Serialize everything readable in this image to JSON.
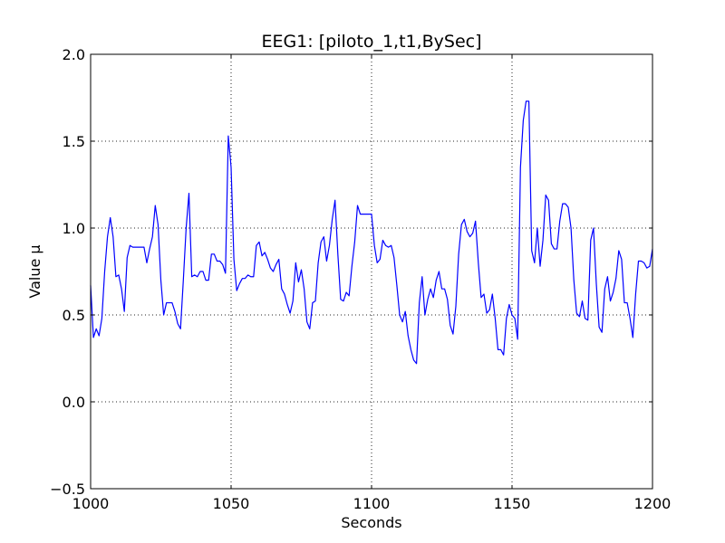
{
  "chart_data": {
    "type": "line",
    "title": "EEG1: [piloto_1,t1,BySec]",
    "xlabel": "Seconds",
    "ylabel": "Value μ",
    "xlim": [
      1000,
      1200
    ],
    "ylim": [
      -0.5,
      2.0
    ],
    "xticks": [
      1000,
      1050,
      1100,
      1150,
      1200
    ],
    "yticks": [
      -0.5,
      0.0,
      0.5,
      1.0,
      1.5,
      2.0
    ],
    "xtick_labels": [
      "1000",
      "1050",
      "1100",
      "1150",
      "1200"
    ],
    "ytick_labels": [
      "−0.5",
      "0.0",
      "0.5",
      "1.0",
      "1.5",
      "2.0"
    ],
    "grid": true,
    "series": [
      {
        "color": "#0000ff",
        "x": [
          1000,
          1001,
          1002,
          1003,
          1004,
          1005,
          1006,
          1007,
          1008,
          1009,
          1010,
          1011,
          1012,
          1013,
          1014,
          1015,
          1016,
          1017,
          1018,
          1019,
          1020,
          1021,
          1022,
          1023,
          1024,
          1025,
          1026,
          1027,
          1028,
          1029,
          1030,
          1031,
          1032,
          1033,
          1034,
          1035,
          1036,
          1037,
          1038,
          1039,
          1040,
          1041,
          1042,
          1043,
          1044,
          1045,
          1046,
          1047,
          1048,
          1049,
          1050,
          1051,
          1052,
          1053,
          1054,
          1055,
          1056,
          1057,
          1058,
          1059,
          1060,
          1061,
          1062,
          1063,
          1064,
          1065,
          1066,
          1067,
          1068,
          1069,
          1070,
          1071,
          1072,
          1073,
          1074,
          1075,
          1076,
          1077,
          1078,
          1079,
          1080,
          1081,
          1082,
          1083,
          1084,
          1085,
          1086,
          1087,
          1088,
          1089,
          1090,
          1091,
          1092,
          1093,
          1094,
          1095,
          1096,
          1097,
          1098,
          1099,
          1100,
          1101,
          1102,
          1103,
          1104,
          1105,
          1106,
          1107,
          1108,
          1109,
          1110,
          1111,
          1112,
          1113,
          1114,
          1115,
          1116,
          1117,
          1118,
          1119,
          1120,
          1121,
          1122,
          1123,
          1124,
          1125,
          1126,
          1127,
          1128,
          1129,
          1130,
          1131,
          1132,
          1133,
          1134,
          1135,
          1136,
          1137,
          1138,
          1139,
          1140,
          1141,
          1142,
          1143,
          1144,
          1145,
          1146,
          1147,
          1148,
          1149,
          1150,
          1151,
          1152,
          1153,
          1154,
          1155,
          1156,
          1157,
          1158,
          1159,
          1160,
          1161,
          1162,
          1163,
          1164,
          1165,
          1166,
          1167,
          1168,
          1169,
          1170,
          1171,
          1172,
          1173,
          1174,
          1175,
          1176,
          1177,
          1178,
          1179,
          1180,
          1181,
          1182,
          1183,
          1184,
          1185,
          1186,
          1187,
          1188,
          1189,
          1190,
          1191,
          1192,
          1193,
          1194,
          1195,
          1196,
          1197,
          1198,
          1199,
          1200
        ],
        "y": [
          0.67,
          0.37,
          0.42,
          0.38,
          0.48,
          0.75,
          0.95,
          1.06,
          0.95,
          0.72,
          0.73,
          0.65,
          0.52,
          0.83,
          0.9,
          0.89,
          0.89,
          0.89,
          0.89,
          0.89,
          0.8,
          0.88,
          0.95,
          1.13,
          1.02,
          0.7,
          0.5,
          0.57,
          0.57,
          0.57,
          0.52,
          0.45,
          0.42,
          0.7,
          1.0,
          1.2,
          0.72,
          0.73,
          0.72,
          0.75,
          0.75,
          0.7,
          0.7,
          0.85,
          0.85,
          0.81,
          0.81,
          0.79,
          0.74,
          1.53,
          1.35,
          0.82,
          0.64,
          0.68,
          0.71,
          0.71,
          0.73,
          0.72,
          0.72,
          0.9,
          0.92,
          0.84,
          0.86,
          0.82,
          0.77,
          0.75,
          0.79,
          0.82,
          0.65,
          0.62,
          0.56,
          0.51,
          0.58,
          0.8,
          0.69,
          0.76,
          0.65,
          0.46,
          0.42,
          0.57,
          0.58,
          0.8,
          0.92,
          0.95,
          0.81,
          0.9,
          1.05,
          1.16,
          0.85,
          0.59,
          0.58,
          0.63,
          0.61,
          0.78,
          0.92,
          1.13,
          1.08,
          1.08,
          1.08,
          1.08,
          1.08,
          0.9,
          0.8,
          0.82,
          0.93,
          0.9,
          0.89,
          0.9,
          0.83,
          0.67,
          0.5,
          0.46,
          0.52,
          0.38,
          0.3,
          0.24,
          0.22,
          0.57,
          0.72,
          0.5,
          0.59,
          0.65,
          0.6,
          0.7,
          0.75,
          0.65,
          0.65,
          0.59,
          0.44,
          0.39,
          0.55,
          0.85,
          1.02,
          1.05,
          0.98,
          0.95,
          0.97,
          1.04,
          0.8,
          0.6,
          0.62,
          0.51,
          0.53,
          0.62,
          0.48,
          0.3,
          0.3,
          0.27,
          0.48,
          0.56,
          0.5,
          0.48,
          0.36,
          1.35,
          1.62,
          1.73,
          1.73,
          0.87,
          0.8,
          1.0,
          0.78,
          0.93,
          1.19,
          1.16,
          0.91,
          0.88,
          0.88,
          1.04,
          1.14,
          1.14,
          1.12,
          1.0,
          0.7,
          0.51,
          0.49,
          0.58,
          0.48,
          0.47,
          0.93,
          1.0,
          0.68,
          0.43,
          0.4,
          0.65,
          0.72,
          0.58,
          0.63,
          0.71,
          0.87,
          0.82,
          0.57,
          0.57,
          0.48,
          0.37,
          0.62,
          0.81,
          0.81,
          0.8,
          0.77,
          0.78,
          0.88
        ]
      }
    ]
  }
}
